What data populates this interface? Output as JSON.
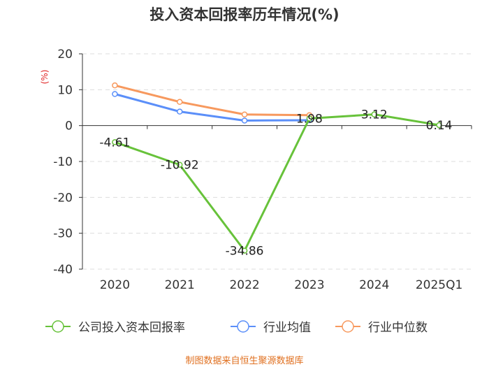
{
  "chart_data": {
    "type": "line",
    "title": "投入资本回报率历年情况(%)",
    "ylabel": "(%)",
    "xlabel": "",
    "categories": [
      "2020",
      "2021",
      "2022",
      "2023",
      "2024",
      "2025Q1"
    ],
    "ylim": [
      -40,
      20
    ],
    "yticks": [
      20,
      10,
      0,
      -10,
      -20,
      -30,
      -40
    ],
    "grid": true,
    "legend_position": "bottom",
    "series": [
      {
        "name": "公司投入资本回报率",
        "color": "#67c23a",
        "values": [
          -4.61,
          -10.92,
          -34.86,
          1.98,
          3.12,
          0.14
        ],
        "labels": [
          "-4.61",
          "-10.92",
          "-34.86",
          "1.98",
          "3.12",
          "0.14"
        ]
      },
      {
        "name": "行业均值",
        "color": "#5b8ff9",
        "values": [
          8.8,
          3.9,
          1.4,
          1.5,
          null,
          null
        ]
      },
      {
        "name": "行业中位数",
        "color": "#f7995e",
        "values": [
          11.2,
          6.6,
          3.1,
          2.9,
          null,
          null
        ]
      }
    ]
  },
  "source": "制图数据来自恒生聚源数据库"
}
